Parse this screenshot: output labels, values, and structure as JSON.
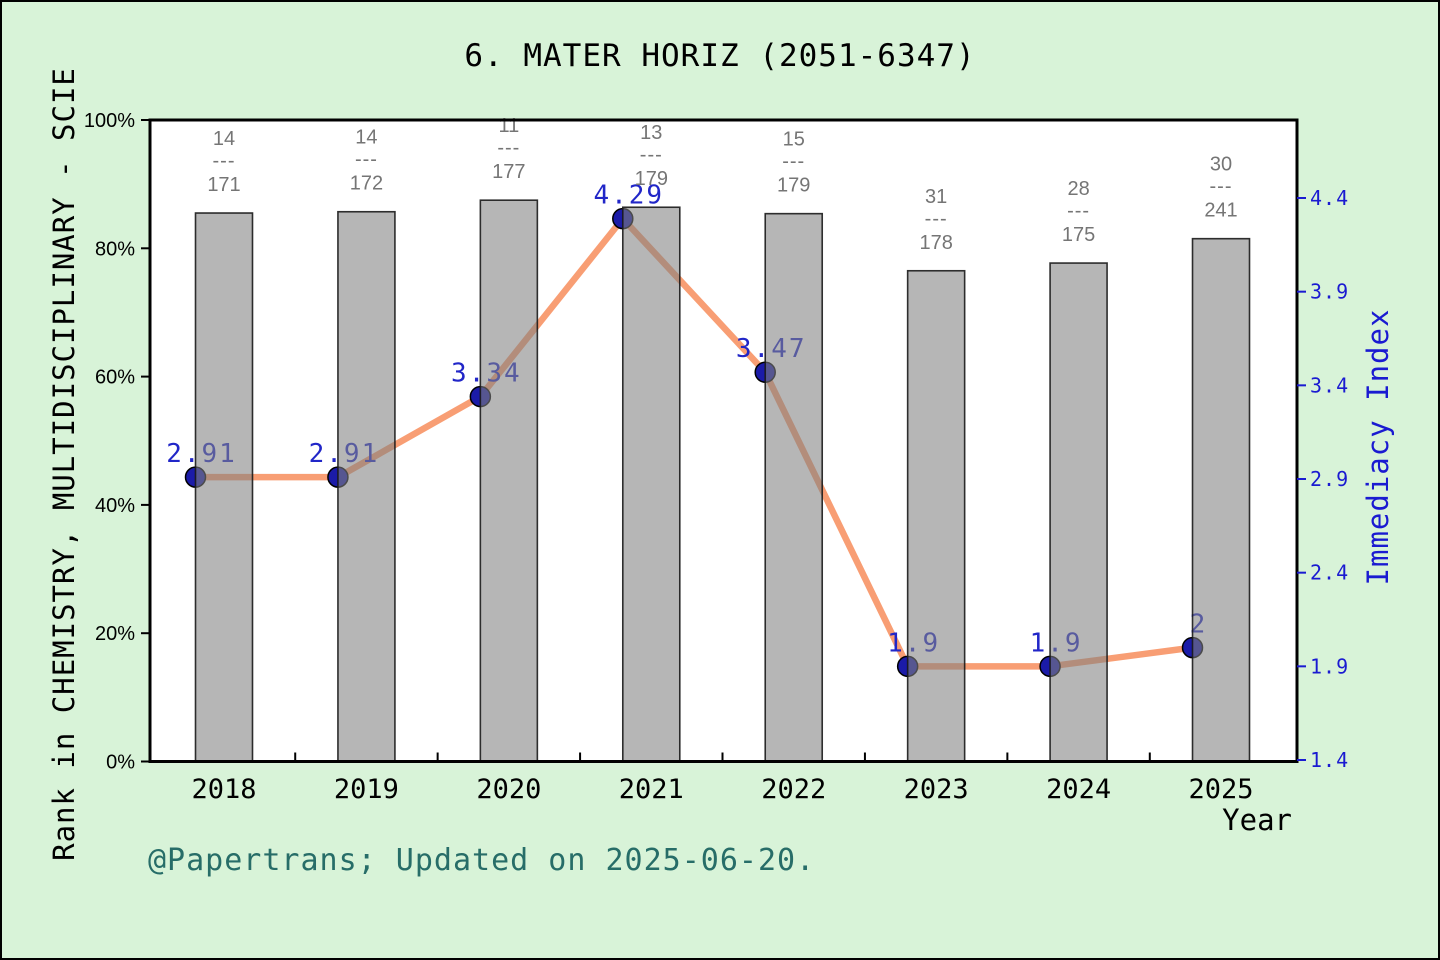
{
  "figure": {
    "footer": "@Papertrans; Updated on 2025-06-20.",
    "colors": {
      "background": "#d8f3d8",
      "plot_background": "#ffffff",
      "bar_fill_rgba": "rgba(130,130,130,0.58)",
      "bar_fill_flat": "#b6b6b6",
      "bar_edge": "rgba(25,25,25,0.9)",
      "line": "#f89e74",
      "marker": "#1b1ba8",
      "marker_edge": "#000000",
      "value_label": "#2126c8",
      "right_axis": "#1a1ad1",
      "fraction_label": "#757575",
      "footer_text": "#276d68",
      "frame": "#000000"
    }
  },
  "chart_data": {
    "type": "bar+line dual-axis",
    "title": "6. MATER HORIZ (2051-6347)",
    "x": [
      "2018",
      "2019",
      "2020",
      "2021",
      "2022",
      "2023",
      "2024",
      "2025"
    ],
    "xlabel": "Year",
    "grid": false,
    "left_axis": {
      "label": "Rank in CHEMISTRY, MULTIDISCIPLINARY - SCIE",
      "ticks": [
        "0%",
        "20%",
        "40%",
        "60%",
        "80%",
        "100%"
      ],
      "range": [
        0,
        100
      ]
    },
    "right_axis": {
      "label": "Immediacy Index",
      "ticks": [
        "1.4",
        "1.9",
        "2.4",
        "2.9",
        "3.4",
        "3.9",
        "4.4"
      ],
      "range": [
        1.4,
        4.83
      ]
    },
    "series": [
      {
        "name": "Rank percentile (bars, left axis)",
        "type": "bar",
        "axis": "left",
        "values_pct": [
          85.5,
          85.7,
          87.5,
          86.4,
          85.4,
          76.5,
          77.7,
          81.5
        ],
        "fraction_separator": "---",
        "rank_labels": [
          {
            "numerator": "14",
            "denominator": "171"
          },
          {
            "numerator": "14",
            "denominator": "172"
          },
          {
            "numerator": "11",
            "denominator": "177"
          },
          {
            "numerator": "13",
            "denominator": "179"
          },
          {
            "numerator": "15",
            "denominator": "179"
          },
          {
            "numerator": "31",
            "denominator": "178"
          },
          {
            "numerator": "28",
            "denominator": "175"
          },
          {
            "numerator": "30",
            "denominator": "241"
          }
        ]
      },
      {
        "name": "Immediacy Index (line, right axis)",
        "type": "line",
        "axis": "right",
        "values": [
          2.91,
          2.91,
          3.34,
          4.29,
          3.47,
          1.9,
          1.9,
          2
        ],
        "labels": [
          "2.91",
          "2.91",
          "3.34",
          "4.29",
          "3.47",
          "1.9",
          "1.9",
          "2"
        ]
      }
    ]
  }
}
